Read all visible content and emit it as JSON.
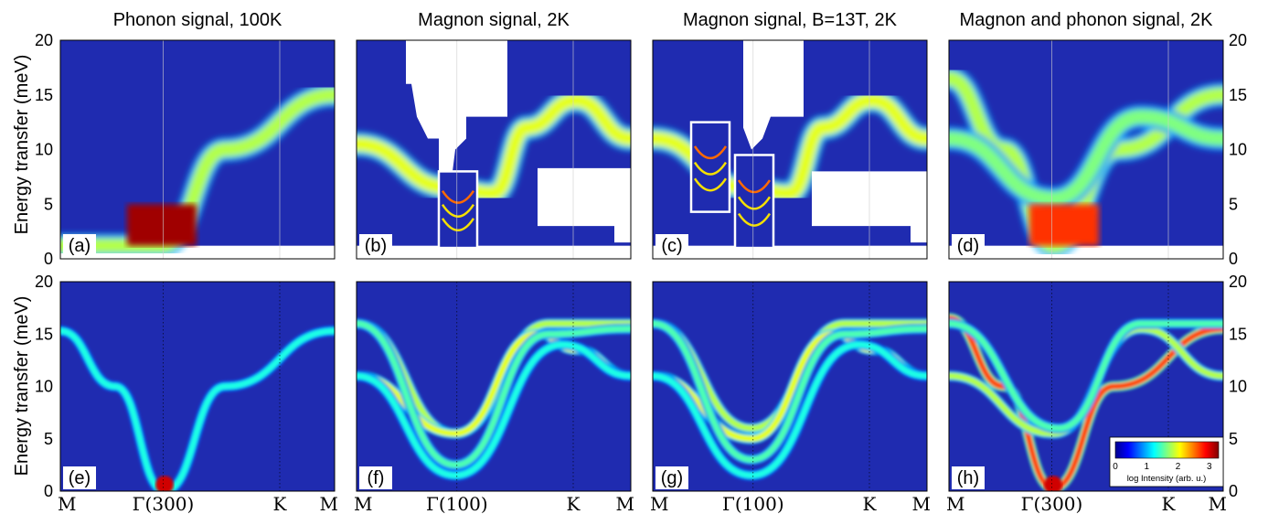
{
  "chart_data": {
    "type": "heatmap",
    "shared_ylabel": "Energy transfer (meV)",
    "ylim": [
      0,
      20
    ],
    "y_ticks": [
      0,
      5,
      10,
      15,
      20
    ],
    "x_ticks": {
      "phonon": [
        "M",
        "Γ(300)",
        "K",
        "M"
      ],
      "magnon": [
        "M",
        "Γ(100)",
        "K",
        "M"
      ]
    },
    "colorbar": {
      "label": "log Intensity (arb. u.)",
      "ticks": [
        0,
        1,
        2,
        3
      ],
      "range": [
        0,
        3.3
      ],
      "colormap": "jet"
    },
    "panels": [
      {
        "id": "a",
        "label": "(a)",
        "title": "Phonon signal, 100K",
        "kind": "measured",
        "x_ticks": "phonon",
        "branches": [
          {
            "points": [
              [
                0,
                1.2
              ],
              [
                0.37,
                1.2
              ],
              [
                0.6,
                10
              ],
              [
                1.0,
                15
              ]
            ],
            "intensity": 0.55
          }
        ],
        "intensity_note": "strong low-energy signal near Γ(300)"
      },
      {
        "id": "b",
        "label": "(b)",
        "title": "Magnon signal, 2K",
        "kind": "measured",
        "x_ticks": "magnon",
        "branches": [
          {
            "points": [
              [
                0,
                10.5
              ],
              [
                0.34,
                6.5
              ],
              [
                0.5,
                6
              ],
              [
                0.62,
                12
              ],
              [
                0.8,
                14.5
              ],
              [
                1.0,
                11
              ]
            ],
            "intensity": 0.6
          }
        ],
        "inset_energy_range": [
          0.5,
          8
        ]
      },
      {
        "id": "c",
        "label": "(c)",
        "title": "Magnon signal, B=13T, 2K",
        "kind": "measured",
        "x_ticks": "magnon",
        "branches": [
          {
            "points": [
              [
                0,
                11
              ],
              [
                0.34,
                6.5
              ],
              [
                0.5,
                6
              ],
              [
                0.62,
                12
              ],
              [
                0.8,
                14.5
              ],
              [
                1.0,
                11
              ]
            ],
            "intensity": 0.6
          }
        ],
        "inset_energy_range": [
          0.8,
          9.5
        ]
      },
      {
        "id": "d",
        "label": "(d)",
        "title": "Magnon and phonon signal, 2K",
        "kind": "measured",
        "x_ticks": "phonon",
        "branches": [
          {
            "points": [
              [
                0,
                16.5
              ],
              [
                0.2,
                10
              ],
              [
                0.38,
                1.2
              ],
              [
                0.62,
                10
              ],
              [
                1.0,
                15
              ]
            ],
            "intensity": 0.55
          },
          {
            "points": [
              [
                0,
                11
              ],
              [
                0.38,
                5.5
              ],
              [
                0.7,
                13
              ],
              [
                1.0,
                11
              ]
            ],
            "intensity": 0.5
          }
        ]
      },
      {
        "id": "e",
        "label": "(e)",
        "title": "",
        "kind": "calculated",
        "x_ticks": "phonon",
        "branches": [
          {
            "points": [
              [
                0,
                15.3
              ],
              [
                0.2,
                10
              ],
              [
                0.38,
                0
              ],
              [
                0.6,
                10
              ],
              [
                1.0,
                15.3
              ]
            ],
            "intensity": 0.4
          }
        ]
      },
      {
        "id": "f",
        "label": "(f)",
        "title": "",
        "kind": "calculated",
        "x_ticks": "magnon",
        "branches": [
          {
            "points": [
              [
                0,
                16
              ],
              [
                0.36,
                5.5
              ],
              [
                0.7,
                16
              ],
              [
                1.0,
                16
              ]
            ],
            "intensity": 0.55
          },
          {
            "points": [
              [
                0,
                11
              ],
              [
                0.36,
                5.5
              ],
              [
                0.66,
                15
              ],
              [
                0.8,
                13.5
              ],
              [
                1.0,
                11
              ]
            ],
            "intensity": 0.6
          },
          {
            "points": [
              [
                0,
                16
              ],
              [
                0.36,
                2.5
              ],
              [
                0.7,
                15
              ],
              [
                1.0,
                15.5
              ]
            ],
            "intensity": 0.45
          },
          {
            "points": [
              [
                0,
                11
              ],
              [
                0.36,
                1.5
              ],
              [
                0.75,
                14
              ],
              [
                1.0,
                11
              ]
            ],
            "intensity": 0.4
          }
        ]
      },
      {
        "id": "g",
        "label": "(g)",
        "title": "",
        "kind": "calculated",
        "x_ticks": "magnon",
        "branches": [
          {
            "points": [
              [
                0,
                16
              ],
              [
                0.36,
                6
              ],
              [
                0.7,
                16
              ],
              [
                1.0,
                16
              ]
            ],
            "intensity": 0.55
          },
          {
            "points": [
              [
                0,
                11
              ],
              [
                0.36,
                5
              ],
              [
                0.66,
                15
              ],
              [
                0.8,
                13.5
              ],
              [
                1.0,
                11
              ]
            ],
            "intensity": 0.6
          },
          {
            "points": [
              [
                0,
                16
              ],
              [
                0.36,
                3
              ],
              [
                0.7,
                15
              ],
              [
                1.0,
                15.5
              ]
            ],
            "intensity": 0.45
          },
          {
            "points": [
              [
                0,
                11
              ],
              [
                0.36,
                1.5
              ],
              [
                0.75,
                14
              ],
              [
                1.0,
                11
              ]
            ],
            "intensity": 0.4
          }
        ]
      },
      {
        "id": "h",
        "label": "(h)",
        "title": "",
        "kind": "calculated",
        "x_ticks": "phonon",
        "branches": [
          {
            "points": [
              [
                0,
                16.5
              ],
              [
                0.2,
                10
              ],
              [
                0.38,
                0.3
              ],
              [
                0.6,
                10
              ],
              [
                1.0,
                15.5
              ]
            ],
            "intensity": 0.8
          },
          {
            "points": [
              [
                0,
                11
              ],
              [
                0.38,
                5.5
              ],
              [
                0.7,
                15.5
              ],
              [
                1.0,
                11
              ]
            ],
            "intensity": 0.55
          },
          {
            "points": [
              [
                0,
                16
              ],
              [
                0.4,
                6
              ],
              [
                0.7,
                16
              ],
              [
                1.0,
                16
              ]
            ],
            "intensity": 0.45
          }
        ]
      }
    ]
  }
}
